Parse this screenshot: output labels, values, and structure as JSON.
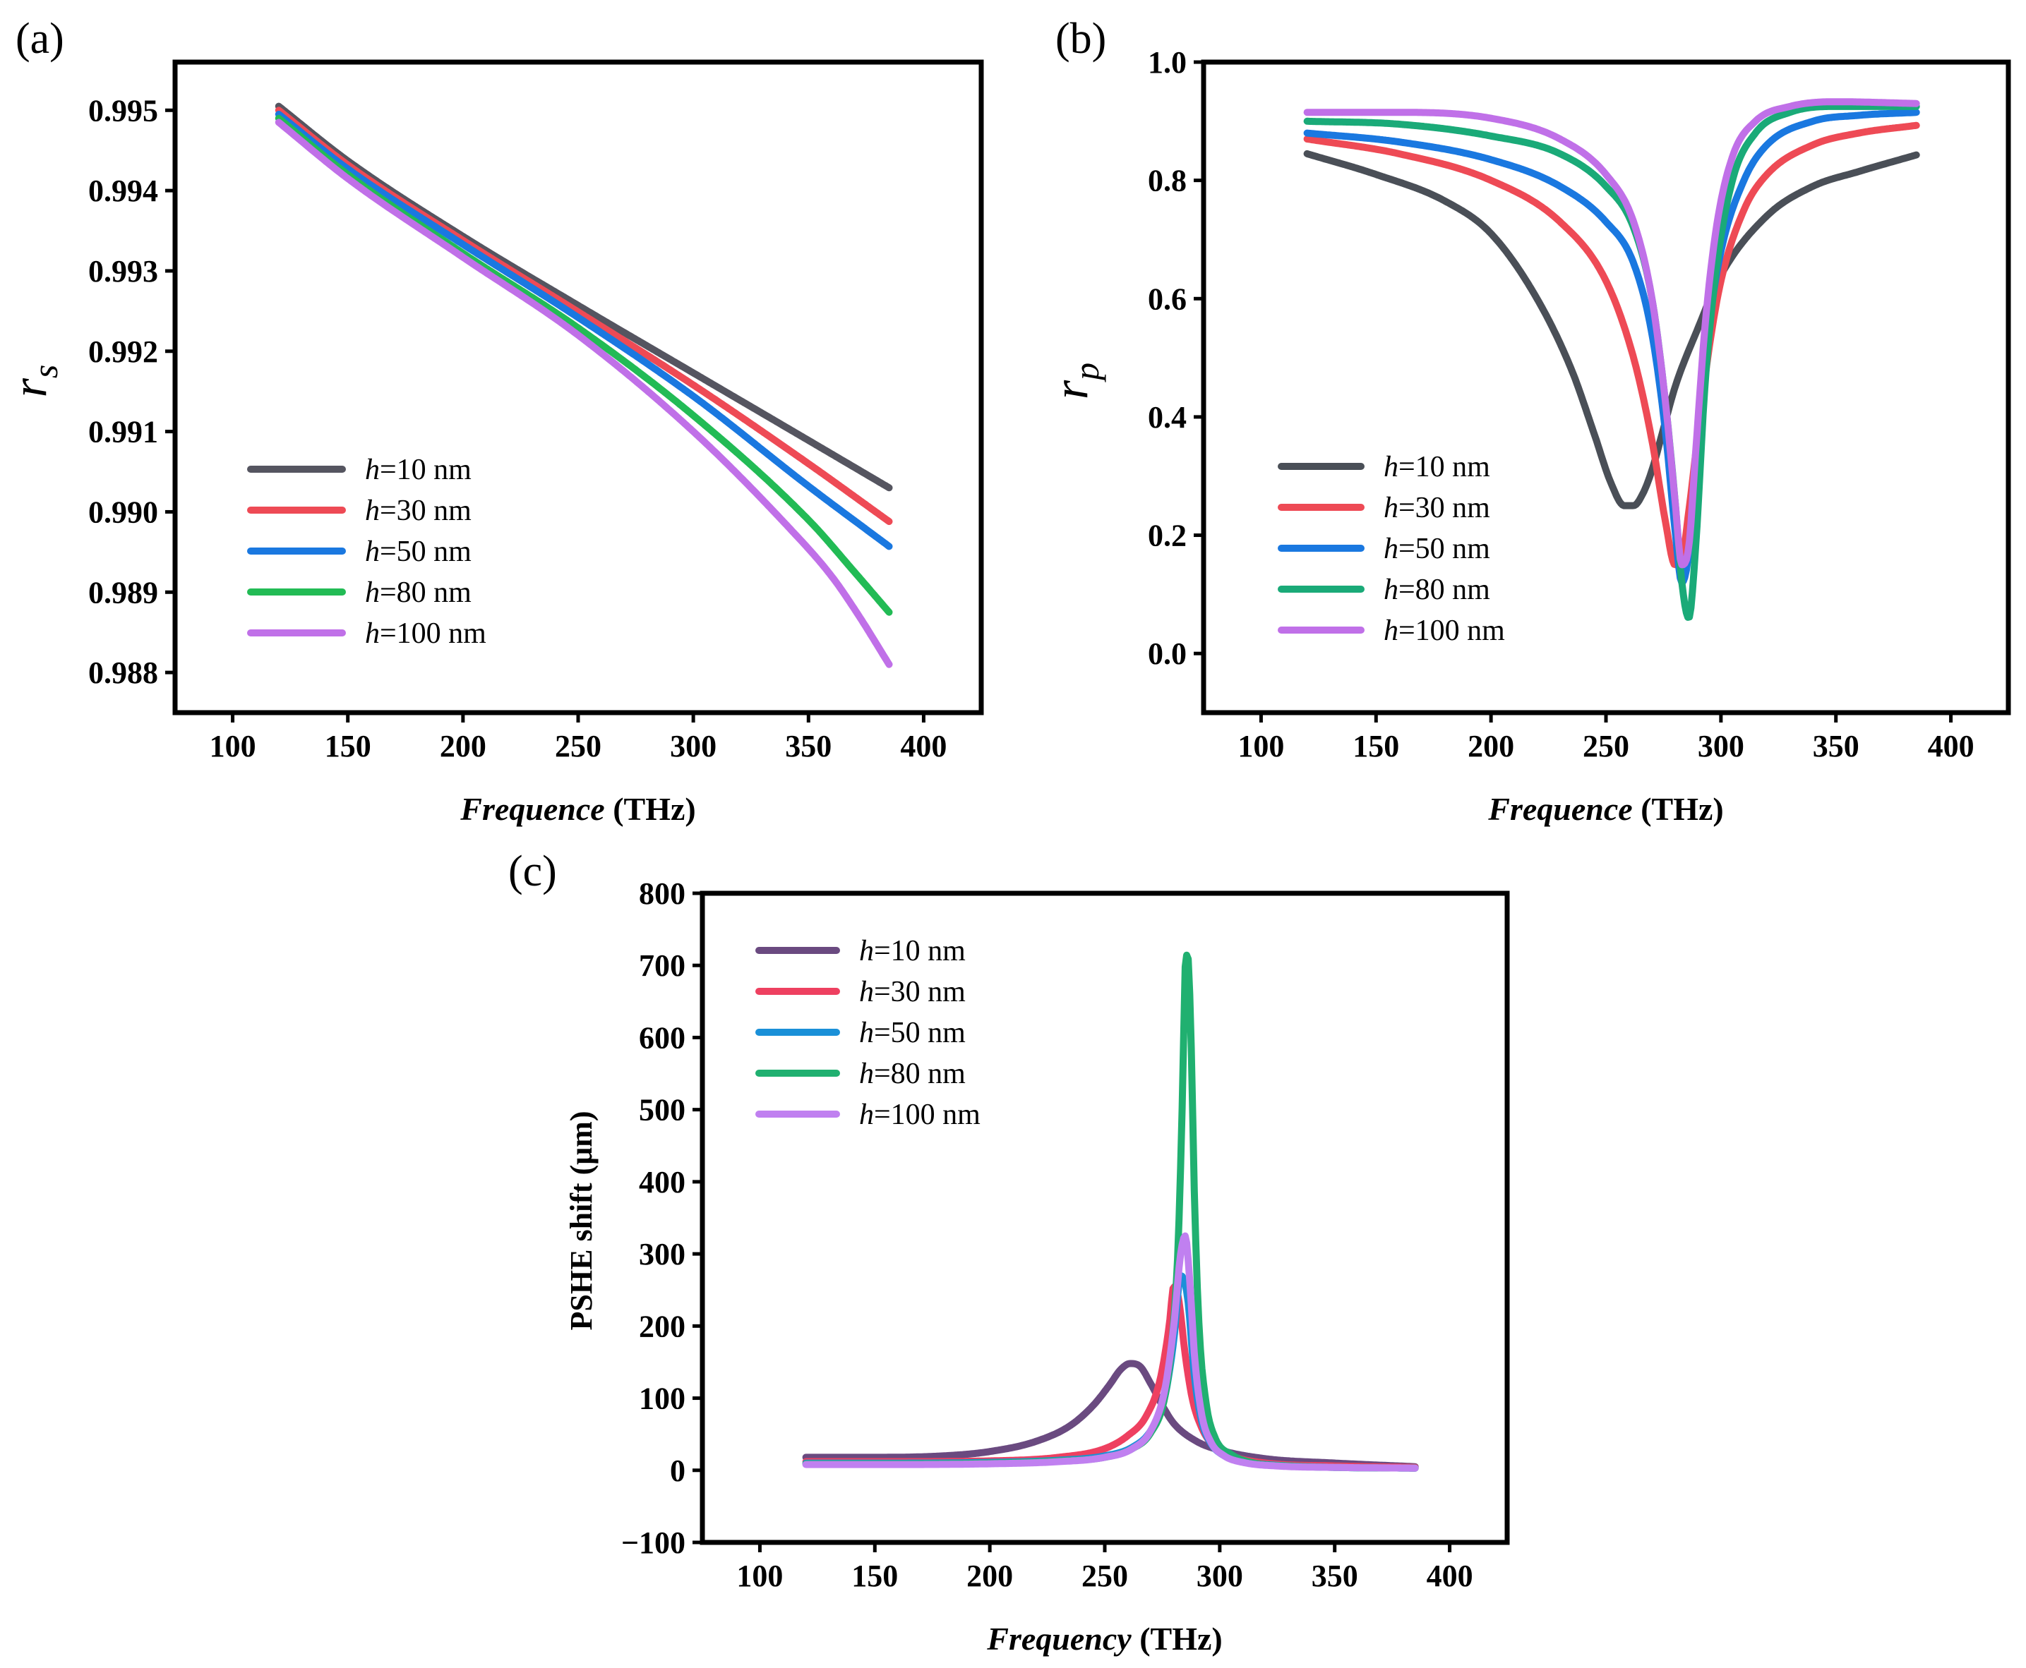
{
  "chart_data": [
    {
      "id": "a",
      "type": "line",
      "panel_label": "(a)",
      "title": "",
      "xlabel_italic": "Frequence",
      "xlabel_unit": " (THz)",
      "ylabel_symbol": "r",
      "ylabel_sub": "s",
      "xlim": [
        75,
        425
      ],
      "ylim": [
        0.9875,
        0.9956
      ],
      "xticks": [
        "100",
        "150",
        "200",
        "250",
        "300",
        "350",
        "400"
      ],
      "xtick_values": [
        100,
        150,
        200,
        250,
        300,
        350,
        400
      ],
      "yticks": [
        "0.988",
        "0.989",
        "0.990",
        "0.991",
        "0.992",
        "0.993",
        "0.994",
        "0.995"
      ],
      "ytick_values": [
        0.988,
        0.989,
        0.99,
        0.991,
        0.992,
        0.993,
        0.994,
        0.995
      ],
      "legend_position": "lower-left",
      "series": [
        {
          "h": "h",
          "label": "=10 nm",
          "color": "#555560",
          "x": [
            120,
            150,
            200,
            250,
            300,
            350,
            385
          ],
          "y": [
            0.99505,
            0.99437,
            0.99343,
            0.99257,
            0.99173,
            0.99089,
            0.9903
          ]
        },
        {
          "h": "h",
          "label": "=30 nm",
          "color": "#ee4a55",
          "x": [
            120,
            150,
            200,
            250,
            300,
            350,
            385
          ],
          "y": [
            0.995,
            0.99432,
            0.99338,
            0.99249,
            0.99158,
            0.9906,
            0.98988
          ]
        },
        {
          "h": "h",
          "label": "=50 nm",
          "color": "#1a78e0",
          "x": [
            120,
            150,
            200,
            250,
            300,
            350,
            385
          ],
          "y": [
            0.99495,
            0.99427,
            0.99333,
            0.99242,
            0.99144,
            0.99032,
            0.98957
          ]
        },
        {
          "h": "h",
          "label": "=80 nm",
          "color": "#22bb55",
          "x": [
            120,
            150,
            200,
            250,
            300,
            350,
            370,
            385
          ],
          "y": [
            0.9949,
            0.9942,
            0.99322,
            0.99229,
            0.9912,
            0.9899,
            0.98925,
            0.98875
          ]
        },
        {
          "h": "h",
          "label": "=100 nm",
          "color": "#c070e8",
          "x": [
            120,
            150,
            200,
            250,
            300,
            340,
            360,
            372,
            385
          ],
          "y": [
            0.99485,
            0.99415,
            0.99317,
            0.9922,
            0.991,
            0.98985,
            0.9892,
            0.9887,
            0.9881
          ]
        }
      ]
    },
    {
      "id": "b",
      "type": "line",
      "panel_label": "(b)",
      "title": "",
      "xlabel_italic": "Frequence",
      "xlabel_unit": " (THz)",
      "ylabel_symbol": "r",
      "ylabel_sub": "p",
      "xlim": [
        75,
        425
      ],
      "ylim": [
        -0.1,
        1.0
      ],
      "xticks": [
        "100",
        "150",
        "200",
        "250",
        "300",
        "350",
        "400"
      ],
      "xtick_values": [
        100,
        150,
        200,
        250,
        300,
        350,
        400
      ],
      "yticks": [
        "0.0",
        "0.2",
        "0.4",
        "0.6",
        "0.8",
        "1.0"
      ],
      "ytick_values": [
        0.0,
        0.2,
        0.4,
        0.6,
        0.8,
        1.0
      ],
      "legend_position": "lower-left",
      "series": [
        {
          "h": "h",
          "label": "=10 nm",
          "color": "#4a4f57",
          "x": [
            120,
            150,
            180,
            200,
            220,
            235,
            245,
            252,
            258,
            262,
            266,
            270,
            275,
            280,
            290,
            300,
            320,
            340,
            360,
            385
          ],
          "y": [
            0.845,
            0.81,
            0.765,
            0.71,
            0.6,
            0.48,
            0.37,
            0.29,
            0.25,
            0.25,
            0.27,
            0.31,
            0.38,
            0.45,
            0.55,
            0.64,
            0.74,
            0.79,
            0.815,
            0.843
          ]
        },
        {
          "h": "h",
          "label": "=30 nm",
          "color": "#ee4a55",
          "x": [
            120,
            160,
            200,
            230,
            250,
            262,
            270,
            276,
            280,
            283,
            286,
            290,
            295,
            300,
            310,
            320,
            340,
            360,
            385
          ],
          "y": [
            0.87,
            0.845,
            0.8,
            0.73,
            0.63,
            0.5,
            0.36,
            0.22,
            0.15,
            0.16,
            0.24,
            0.37,
            0.52,
            0.63,
            0.75,
            0.81,
            0.86,
            0.88,
            0.893
          ]
        },
        {
          "h": "h",
          "label": "=50 nm",
          "color": "#1a78e0",
          "x": [
            120,
            160,
            200,
            230,
            250,
            262,
            270,
            276,
            280,
            283,
            286,
            290,
            295,
            300,
            310,
            320,
            340,
            360,
            385
          ],
          "y": [
            0.88,
            0.865,
            0.835,
            0.79,
            0.73,
            0.66,
            0.54,
            0.37,
            0.21,
            0.12,
            0.17,
            0.38,
            0.56,
            0.68,
            0.8,
            0.86,
            0.9,
            0.91,
            0.915
          ]
        },
        {
          "h": "h",
          "label": "=80 nm",
          "color": "#1aaa78",
          "x": [
            120,
            160,
            200,
            230,
            250,
            262,
            270,
            276,
            280,
            283,
            286,
            289,
            293,
            298,
            305,
            315,
            330,
            350,
            385
          ],
          "y": [
            0.9,
            0.895,
            0.875,
            0.845,
            0.79,
            0.72,
            0.6,
            0.42,
            0.26,
            0.12,
            0.06,
            0.18,
            0.45,
            0.65,
            0.8,
            0.88,
            0.915,
            0.925,
            0.925
          ]
        },
        {
          "h": "h",
          "label": "=100 nm",
          "color": "#c070e8",
          "x": [
            120,
            160,
            200,
            230,
            250,
            262,
            270,
            276,
            280,
            283,
            286,
            289,
            293,
            298,
            305,
            315,
            330,
            350,
            385
          ],
          "y": [
            0.915,
            0.915,
            0.905,
            0.87,
            0.81,
            0.73,
            0.6,
            0.42,
            0.26,
            0.15,
            0.18,
            0.34,
            0.55,
            0.72,
            0.84,
            0.9,
            0.925,
            0.933,
            0.93
          ]
        }
      ]
    },
    {
      "id": "c",
      "type": "line",
      "panel_label": "(c)",
      "title": "",
      "xlabel_italic": "Frequency",
      "xlabel_unit": " (THz)",
      "ylabel_text": "PSHE shift (μm)",
      "xlim": [
        75,
        425
      ],
      "ylim": [
        -100,
        800
      ],
      "xticks": [
        "100",
        "150",
        "200",
        "250",
        "300",
        "350",
        "400"
      ],
      "xtick_values": [
        100,
        150,
        200,
        250,
        300,
        350,
        400
      ],
      "yticks": [
        "−100",
        "0",
        "100",
        "200",
        "300",
        "400",
        "500",
        "600",
        "700",
        "800"
      ],
      "ytick_values": [
        -100,
        0,
        100,
        200,
        300,
        400,
        500,
        600,
        700,
        800
      ],
      "legend_position": "top-left",
      "series": [
        {
          "h": "h",
          "label": "=10 nm",
          "color": "#6a4a80",
          "x": [
            120,
            150,
            180,
            200,
            220,
            235,
            245,
            252,
            257,
            261,
            265,
            270,
            275,
            280,
            290,
            300,
            320,
            350,
            385
          ],
          "y": [
            18,
            18,
            20,
            26,
            40,
            62,
            90,
            118,
            140,
            148,
            145,
            120,
            90,
            65,
            40,
            28,
            16,
            10,
            5
          ]
        },
        {
          "h": "h",
          "label": "=30 nm",
          "color": "#ee4060",
          "x": [
            120,
            160,
            200,
            230,
            250,
            260,
            268,
            274,
            278,
            280,
            282,
            285,
            288,
            292,
            297,
            305,
            320,
            350,
            385
          ],
          "y": [
            12,
            12,
            13,
            18,
            30,
            48,
            75,
            125,
            200,
            255,
            240,
            160,
            100,
            60,
            35,
            20,
            10,
            6,
            4
          ]
        },
        {
          "h": "h",
          "label": "=50 nm",
          "color": "#1a90d8",
          "x": [
            120,
            160,
            200,
            230,
            250,
            262,
            270,
            276,
            280,
            283,
            286,
            289,
            292,
            296,
            302,
            310,
            325,
            350,
            385
          ],
          "y": [
            10,
            10,
            11,
            14,
            20,
            32,
            55,
            100,
            180,
            270,
            240,
            130,
            70,
            38,
            20,
            12,
            7,
            4,
            3
          ]
        },
        {
          "h": "h",
          "label": "=80 nm",
          "color": "#20b070",
          "x": [
            120,
            160,
            200,
            230,
            250,
            262,
            270,
            276,
            279,
            282,
            284,
            285,
            286,
            287.5,
            289,
            291,
            294,
            298,
            305,
            315,
            330,
            350,
            385
          ],
          "y": [
            9,
            9,
            10,
            13,
            18,
            30,
            52,
            100,
            170,
            320,
            550,
            700,
            715,
            600,
            380,
            200,
            95,
            45,
            22,
            10,
            6,
            4,
            3
          ]
        },
        {
          "h": "h",
          "label": "=100 nm",
          "color": "#c080f0",
          "x": [
            120,
            160,
            200,
            230,
            250,
            262,
            270,
            276,
            280,
            283,
            285,
            287,
            289,
            292,
            296,
            302,
            310,
            325,
            350,
            385
          ],
          "y": [
            8,
            8,
            9,
            12,
            18,
            30,
            55,
            110,
            200,
            300,
            325,
            260,
            160,
            80,
            40,
            20,
            11,
            6,
            4,
            3
          ]
        }
      ]
    }
  ]
}
